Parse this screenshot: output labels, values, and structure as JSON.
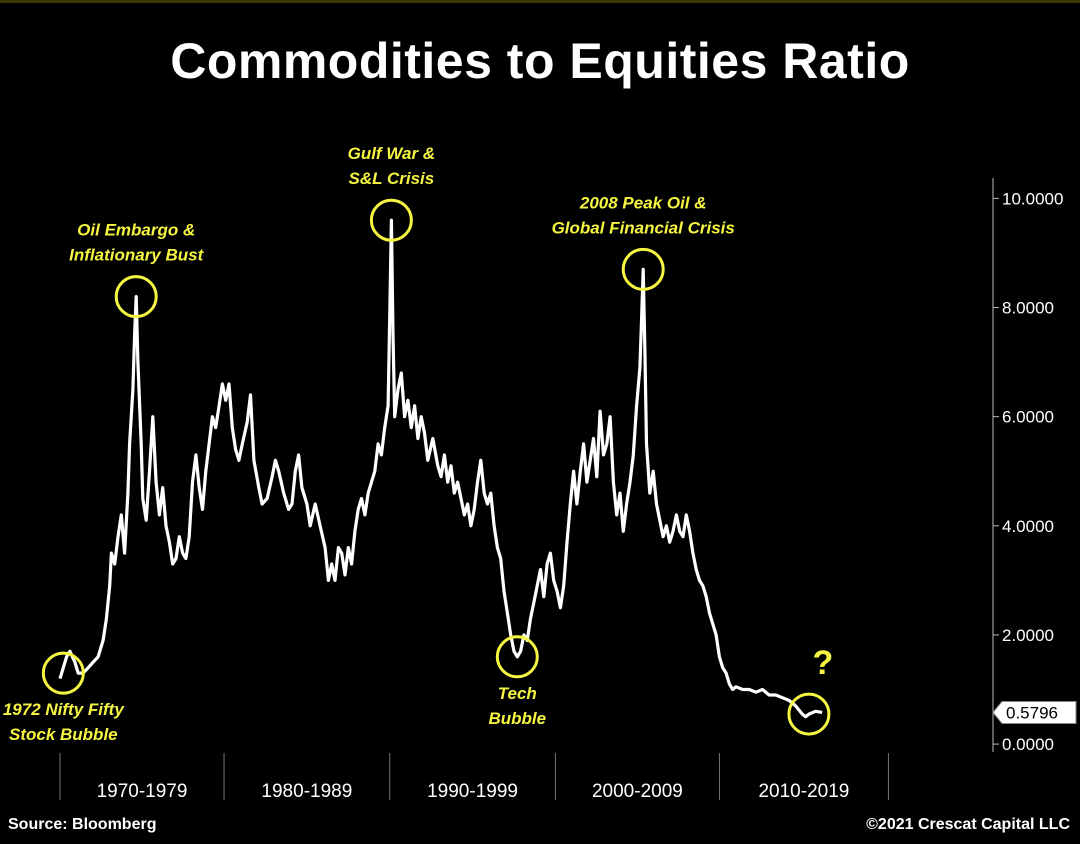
{
  "title": "Commodities to Equities Ratio",
  "source": "Source: Bloomberg",
  "copyright": "©2021 Crescat Capital LLC",
  "colors": {
    "background": "#000000",
    "line": "#ffffff",
    "annotation": "#f5f542",
    "axis": "#bbbbbb"
  },
  "chart_data": {
    "type": "line",
    "title": "Commodities to Equities Ratio",
    "xlabel": "",
    "ylabel": "",
    "xlim": [
      1971.0,
      2022.0
    ],
    "ylim": [
      -0.2,
      10.3
    ],
    "y_ticks": [
      "10.0000",
      "8.0000",
      "6.0000",
      "4.0000",
      "2.0000",
      "0.0000"
    ],
    "y_tick_values": [
      10,
      8,
      6,
      4,
      2,
      0
    ],
    "x_category_labels": [
      "1970-1979",
      "1980-1989",
      "1990-1999",
      "2000-2009",
      "2010-2019"
    ],
    "x_category_ranges": [
      [
        1971.0,
        1980.9
      ],
      [
        1980.9,
        1990.9
      ],
      [
        1990.9,
        2000.9
      ],
      [
        2000.9,
        2010.8
      ],
      [
        2010.8,
        2021.0
      ]
    ],
    "last_value": 0.5796,
    "last_value_label": "0.5796",
    "grid": false,
    "legend": "none",
    "series": [
      {
        "values": [
          [
            1971.0,
            1.2
          ],
          [
            1971.2,
            1.4
          ],
          [
            1971.4,
            1.6
          ],
          [
            1971.6,
            1.7
          ],
          [
            1971.9,
            1.5
          ],
          [
            1972.1,
            1.3
          ],
          [
            1972.4,
            1.3
          ],
          [
            1972.7,
            1.4
          ],
          [
            1973.0,
            1.5
          ],
          [
            1973.3,
            1.6
          ],
          [
            1973.6,
            1.9
          ],
          [
            1973.8,
            2.3
          ],
          [
            1974.0,
            2.9
          ],
          [
            1974.1,
            3.5
          ],
          [
            1974.3,
            3.3
          ],
          [
            1974.5,
            3.8
          ],
          [
            1974.7,
            4.2
          ],
          [
            1974.9,
            3.5
          ],
          [
            1975.1,
            4.6
          ],
          [
            1975.2,
            5.5
          ],
          [
            1975.4,
            6.5
          ],
          [
            1975.5,
            7.5
          ],
          [
            1975.6,
            8.2
          ],
          [
            1975.7,
            7.0
          ],
          [
            1975.9,
            5.5
          ],
          [
            1976.0,
            4.5
          ],
          [
            1976.2,
            4.1
          ],
          [
            1976.4,
            5.0
          ],
          [
            1976.6,
            6.0
          ],
          [
            1976.8,
            4.8
          ],
          [
            1977.0,
            4.2
          ],
          [
            1977.2,
            4.7
          ],
          [
            1977.4,
            4.0
          ],
          [
            1977.6,
            3.7
          ],
          [
            1977.8,
            3.3
          ],
          [
            1978.0,
            3.4
          ],
          [
            1978.2,
            3.8
          ],
          [
            1978.4,
            3.5
          ],
          [
            1978.6,
            3.4
          ],
          [
            1978.8,
            3.8
          ],
          [
            1979.0,
            4.8
          ],
          [
            1979.2,
            5.3
          ],
          [
            1979.4,
            4.7
          ],
          [
            1979.6,
            4.3
          ],
          [
            1979.8,
            5.0
          ],
          [
            1980.0,
            5.5
          ],
          [
            1980.2,
            6.0
          ],
          [
            1980.4,
            5.8
          ],
          [
            1980.6,
            6.2
          ],
          [
            1980.8,
            6.6
          ],
          [
            1981.0,
            6.3
          ],
          [
            1981.2,
            6.6
          ],
          [
            1981.4,
            5.8
          ],
          [
            1981.6,
            5.4
          ],
          [
            1981.8,
            5.2
          ],
          [
            1982.0,
            5.5
          ],
          [
            1982.3,
            5.9
          ],
          [
            1982.5,
            6.4
          ],
          [
            1982.7,
            5.2
          ],
          [
            1983.0,
            4.7
          ],
          [
            1983.2,
            4.4
          ],
          [
            1983.5,
            4.5
          ],
          [
            1983.8,
            4.9
          ],
          [
            1984.0,
            5.2
          ],
          [
            1984.2,
            5.0
          ],
          [
            1984.5,
            4.6
          ],
          [
            1984.8,
            4.3
          ],
          [
            1985.0,
            4.4
          ],
          [
            1985.2,
            5.0
          ],
          [
            1985.4,
            5.3
          ],
          [
            1985.6,
            4.7
          ],
          [
            1985.9,
            4.4
          ],
          [
            1986.1,
            4.0
          ],
          [
            1986.4,
            4.4
          ],
          [
            1986.7,
            4.0
          ],
          [
            1987.0,
            3.6
          ],
          [
            1987.2,
            3.0
          ],
          [
            1987.4,
            3.3
          ],
          [
            1987.6,
            3.0
          ],
          [
            1987.8,
            3.6
          ],
          [
            1988.0,
            3.5
          ],
          [
            1988.2,
            3.1
          ],
          [
            1988.4,
            3.6
          ],
          [
            1988.6,
            3.3
          ],
          [
            1988.8,
            3.9
          ],
          [
            1989.0,
            4.3
          ],
          [
            1989.2,
            4.5
          ],
          [
            1989.4,
            4.2
          ],
          [
            1989.6,
            4.6
          ],
          [
            1989.8,
            4.8
          ],
          [
            1990.0,
            5.0
          ],
          [
            1990.2,
            5.5
          ],
          [
            1990.4,
            5.3
          ],
          [
            1990.6,
            5.8
          ],
          [
            1990.8,
            6.2
          ],
          [
            1990.9,
            7.8
          ],
          [
            1991.0,
            9.6
          ],
          [
            1991.1,
            7.5
          ],
          [
            1991.2,
            6.0
          ],
          [
            1991.4,
            6.5
          ],
          [
            1991.6,
            6.8
          ],
          [
            1991.8,
            6.0
          ],
          [
            1992.0,
            6.3
          ],
          [
            1992.2,
            5.8
          ],
          [
            1992.4,
            6.2
          ],
          [
            1992.6,
            5.6
          ],
          [
            1992.8,
            6.0
          ],
          [
            1993.0,
            5.7
          ],
          [
            1993.2,
            5.2
          ],
          [
            1993.5,
            5.6
          ],
          [
            1993.8,
            5.1
          ],
          [
            1994.0,
            4.9
          ],
          [
            1994.2,
            5.3
          ],
          [
            1994.4,
            4.8
          ],
          [
            1994.6,
            5.1
          ],
          [
            1994.8,
            4.6
          ],
          [
            1995.0,
            4.8
          ],
          [
            1995.2,
            4.5
          ],
          [
            1995.4,
            4.2
          ],
          [
            1995.6,
            4.4
          ],
          [
            1995.8,
            4.0
          ],
          [
            1996.0,
            4.3
          ],
          [
            1996.2,
            4.8
          ],
          [
            1996.4,
            5.2
          ],
          [
            1996.6,
            4.6
          ],
          [
            1996.8,
            4.4
          ],
          [
            1997.0,
            4.6
          ],
          [
            1997.2,
            4.0
          ],
          [
            1997.4,
            3.6
          ],
          [
            1997.6,
            3.4
          ],
          [
            1997.8,
            2.8
          ],
          [
            1998.0,
            2.4
          ],
          [
            1998.2,
            2.0
          ],
          [
            1998.4,
            1.7
          ],
          [
            1998.6,
            1.6
          ],
          [
            1998.8,
            1.7
          ],
          [
            1999.0,
            2.0
          ],
          [
            1999.2,
            1.9
          ],
          [
            1999.4,
            2.3
          ],
          [
            1999.6,
            2.6
          ],
          [
            1999.8,
            2.9
          ],
          [
            2000.0,
            3.2
          ],
          [
            2000.2,
            2.7
          ],
          [
            2000.4,
            3.3
          ],
          [
            2000.6,
            3.5
          ],
          [
            2000.8,
            3.0
          ],
          [
            2001.0,
            2.8
          ],
          [
            2001.2,
            2.5
          ],
          [
            2001.4,
            2.9
          ],
          [
            2001.6,
            3.7
          ],
          [
            2001.8,
            4.4
          ],
          [
            2002.0,
            5.0
          ],
          [
            2002.2,
            4.4
          ],
          [
            2002.4,
            5.0
          ],
          [
            2002.6,
            5.5
          ],
          [
            2002.8,
            4.8
          ],
          [
            2003.0,
            5.2
          ],
          [
            2003.2,
            5.6
          ],
          [
            2003.4,
            4.9
          ],
          [
            2003.6,
            6.1
          ],
          [
            2003.8,
            5.3
          ],
          [
            2004.0,
            5.5
          ],
          [
            2004.2,
            6.0
          ],
          [
            2004.4,
            4.8
          ],
          [
            2004.6,
            4.2
          ],
          [
            2004.8,
            4.6
          ],
          [
            2005.0,
            3.9
          ],
          [
            2005.2,
            4.4
          ],
          [
            2005.4,
            4.8
          ],
          [
            2005.6,
            5.3
          ],
          [
            2005.8,
            6.2
          ],
          [
            2006.0,
            6.9
          ],
          [
            2006.1,
            7.8
          ],
          [
            2006.2,
            8.7
          ],
          [
            2006.3,
            7.2
          ],
          [
            2006.4,
            5.5
          ],
          [
            2006.6,
            4.6
          ],
          [
            2006.8,
            5.0
          ],
          [
            2007.0,
            4.4
          ],
          [
            2007.2,
            4.1
          ],
          [
            2007.4,
            3.8
          ],
          [
            2007.6,
            4.0
          ],
          [
            2007.8,
            3.7
          ],
          [
            2008.0,
            3.9
          ],
          [
            2008.2,
            4.2
          ],
          [
            2008.4,
            3.9
          ],
          [
            2008.6,
            3.8
          ],
          [
            2008.8,
            4.2
          ],
          [
            2009.0,
            3.9
          ],
          [
            2009.2,
            3.5
          ],
          [
            2009.4,
            3.2
          ],
          [
            2009.6,
            3.0
          ],
          [
            2009.8,
            2.9
          ],
          [
            2010.0,
            2.7
          ],
          [
            2010.2,
            2.4
          ],
          [
            2010.4,
            2.2
          ],
          [
            2010.6,
            2.0
          ],
          [
            2010.8,
            1.6
          ],
          [
            2011.0,
            1.4
          ],
          [
            2011.2,
            1.3
          ],
          [
            2011.4,
            1.1
          ],
          [
            2011.6,
            1.0
          ],
          [
            2011.8,
            1.05
          ],
          [
            2012.2,
            1.0
          ],
          [
            2012.6,
            1.0
          ],
          [
            2013.0,
            0.95
          ],
          [
            2013.4,
            1.0
          ],
          [
            2013.8,
            0.9
          ],
          [
            2014.2,
            0.9
          ],
          [
            2014.6,
            0.85
          ],
          [
            2015.0,
            0.8
          ],
          [
            2015.4,
            0.7
          ],
          [
            2015.8,
            0.55
          ],
          [
            2016.0,
            0.5
          ],
          [
            2016.2,
            0.55
          ],
          [
            2016.6,
            0.6
          ],
          [
            2017.0,
            0.58
          ]
        ]
      }
    ],
    "annotations": [
      {
        "lines": [
          "1972 Nifty Fifty",
          "Stock Bubble"
        ],
        "x": 1971.2,
        "y": 1.3,
        "label_pos": "below"
      },
      {
        "lines": [
          "Oil Embargo &",
          "Inflationary Bust"
        ],
        "x": 1975.6,
        "y": 8.2,
        "label_pos": "above"
      },
      {
        "lines": [
          "Gulf War &",
          "S&L Crisis"
        ],
        "x": 1991.0,
        "y": 9.6,
        "label_pos": "above"
      },
      {
        "lines": [
          "Tech",
          "Bubble"
        ],
        "x": 1998.6,
        "y": 1.6,
        "label_pos": "below"
      },
      {
        "lines": [
          "2008 Peak Oil &",
          "Global Financial Crisis"
        ],
        "x": 2006.2,
        "y": 8.7,
        "label_pos": "above"
      },
      {
        "lines": [
          "?"
        ],
        "x": 2016.2,
        "y": 0.55,
        "label_pos": "above"
      }
    ]
  }
}
